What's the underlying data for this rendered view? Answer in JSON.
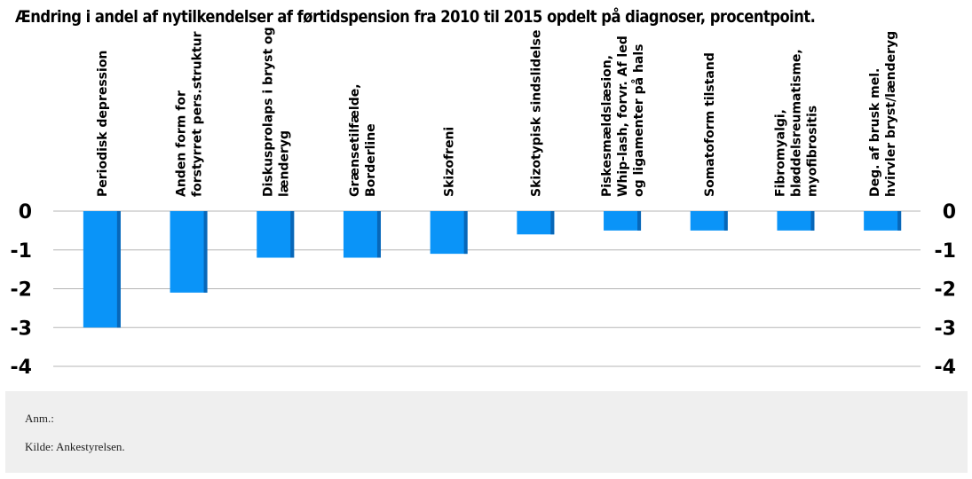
{
  "chart_data": {
    "type": "bar",
    "title": "Ændring i andel af nytilkendelser af førtidspension fra 2010 til 2015 opdelt på diagnoser, procentpoint.",
    "categories": [
      [
        "Periodisk depression"
      ],
      [
        "Anden form for",
        "forstyrret pers.struktur"
      ],
      [
        "Diskusprolaps i bryst og",
        "lænderyg"
      ],
      [
        "Grænsetilfælde,",
        "Borderline"
      ],
      [
        "Skizofreni"
      ],
      [
        "Skizotypisk sindslidelse"
      ],
      [
        "Piskesmældslæsion,",
        "Whip-lash, forvr. Af led",
        "og ligamenter på hals"
      ],
      [
        "Somatoform tilstand"
      ],
      [
        "Fibromyalgi,",
        "bløddelsreumatisme,",
        "myofibrositis"
      ],
      [
        "Deg. af brusk mel.",
        "hvirvler bryst/lænderyg"
      ]
    ],
    "values": [
      -3.0,
      -2.1,
      -1.2,
      -1.2,
      -1.1,
      -0.6,
      -0.5,
      -0.5,
      -0.5,
      -0.5
    ],
    "ylim": [
      -4,
      0
    ],
    "yticks": [
      "0",
      "-1",
      "-2",
      "-3",
      "-4"
    ],
    "xlabel": "",
    "ylabel": "",
    "grid": true,
    "bar_color": "#0a94f8",
    "bar_shadow_color": "#0867b8"
  },
  "footnote": {
    "note": "Anm.:",
    "source": "Kilde: Ankestyrelsen."
  }
}
